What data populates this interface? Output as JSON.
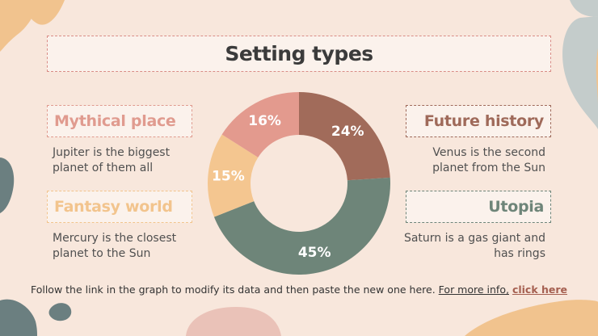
{
  "title": "Setting types",
  "items": [
    {
      "label": "Mythical place",
      "desc_line1": "Jupiter is the biggest",
      "desc_line2": "planet of them all",
      "color": "#e09b8f"
    },
    {
      "label": "Fantasy world",
      "desc_line1": "Mercury is the closest",
      "desc_line2": "planet to the Sun",
      "color": "#f2c48d"
    },
    {
      "label": "Future history",
      "desc_line1": "Venus is the second",
      "desc_line2": "planet from the Sun",
      "color": "#9f6a5a"
    },
    {
      "label": "Utopia",
      "desc_line1": "Saturn is a gas giant and",
      "desc_line2": "has rings",
      "color": "#6e8579"
    }
  ],
  "footer": {
    "text": "Follow the link in the graph to modify its data and then paste the new one here.",
    "link_text": "For more info,",
    "link_strong": "click here"
  },
  "chart_data": {
    "type": "pie",
    "donut": true,
    "slices": [
      {
        "label": "24%",
        "value": 24,
        "color": "#a16b5a"
      },
      {
        "label": "45%",
        "value": 45,
        "color": "#6e8579"
      },
      {
        "label": "15%",
        "value": 15,
        "color": "#f4c690"
      },
      {
        "label": "16%",
        "value": 16,
        "color": "#e39a8e"
      }
    ]
  }
}
